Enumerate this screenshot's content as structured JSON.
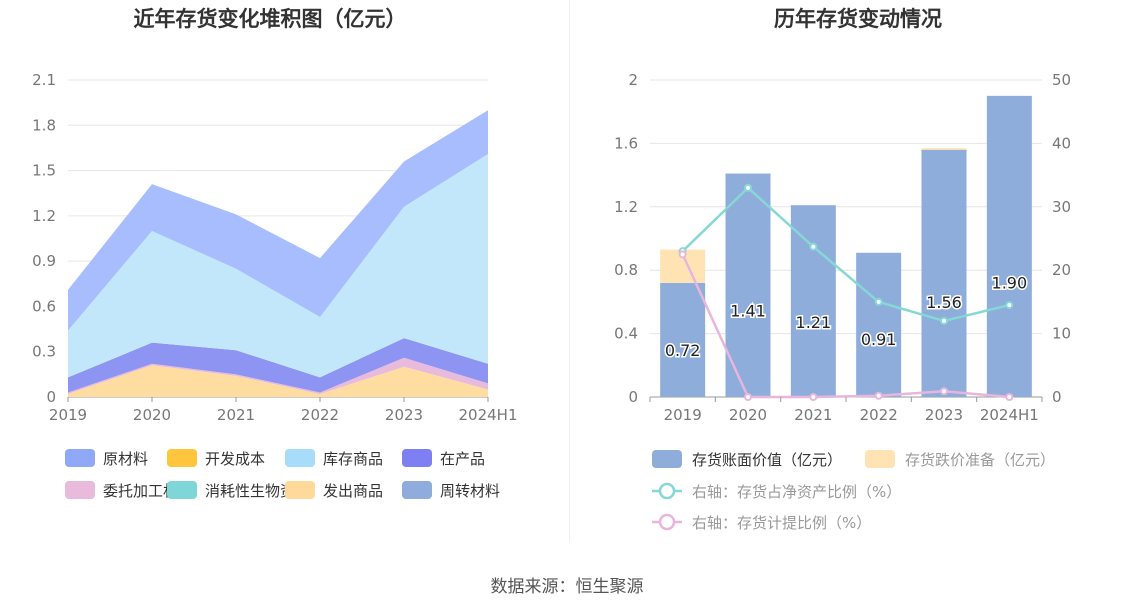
{
  "footer": {
    "source": "数据来源：恒生聚源"
  },
  "chart_data": [
    {
      "type": "area",
      "stacked": true,
      "title": "近年存货变化堆积图（亿元）",
      "x": [
        "2019",
        "2020",
        "2021",
        "2022",
        "2023",
        "2024H1"
      ],
      "ylim": [
        0,
        2.1
      ],
      "yticks": [
        "0",
        "0.3",
        "0.6",
        "0.9",
        "1.2",
        "1.5",
        "1.8",
        "2.1"
      ],
      "grid": true,
      "legend_position": "bottom",
      "series": [
        {
          "name": "发出商品",
          "color": "#FFDDA1",
          "values": [
            0.02,
            0.21,
            0.14,
            0.02,
            0.2,
            0.05
          ]
        },
        {
          "name": "委托加工材料",
          "color": "#E8BBDD",
          "values": [
            0.01,
            0.01,
            0.01,
            0.01,
            0.06,
            0.04
          ]
        },
        {
          "name": "在产品",
          "color": "#8E94F2",
          "values": [
            0.1,
            0.14,
            0.16,
            0.1,
            0.13,
            0.13
          ]
        },
        {
          "name": "库存商品",
          "color": "#C2E7FB",
          "values": [
            0.31,
            0.74,
            0.54,
            0.4,
            0.87,
            1.39
          ]
        },
        {
          "name": "原材料",
          "color": "#A7BDFE",
          "values": [
            0.27,
            0.31,
            0.36,
            0.39,
            0.3,
            0.29
          ]
        },
        {
          "name": "开发成本",
          "color": "#FFC53D",
          "values": [
            0,
            0,
            0,
            0,
            0,
            0
          ]
        },
        {
          "name": "消耗性生物资产",
          "color": "#7FD6D6",
          "values": [
            0,
            0,
            0,
            0,
            0,
            0
          ]
        },
        {
          "name": "周转材料",
          "color": "#8FACDC",
          "values": [
            0,
            0,
            0,
            0,
            0,
            0
          ]
        }
      ],
      "legend": [
        {
          "name": "原材料",
          "color": "#8FA9F6"
        },
        {
          "name": "开发成本",
          "color": "#FFC53D"
        },
        {
          "name": "库存商品",
          "color": "#A7DDF8"
        },
        {
          "name": "在产品",
          "color": "#7D7FF2"
        },
        {
          "name": "委托加工材料",
          "color": "#E8BBDD"
        },
        {
          "name": "消耗性生物资产",
          "color": "#7FD6D6"
        },
        {
          "name": "发出商品",
          "color": "#FFD99A"
        },
        {
          "name": "周转材料",
          "color": "#8FACDC"
        }
      ]
    },
    {
      "type": "bar",
      "title": "历年存货变动情况",
      "categories": [
        "2019",
        "2020",
        "2021",
        "2022",
        "2023",
        "2024H1"
      ],
      "ylim": [
        0,
        2
      ],
      "yticks": [
        "0",
        "0.4",
        "0.8",
        "1.2",
        "1.6",
        "2"
      ],
      "y2lim": [
        0,
        50
      ],
      "y2ticks": [
        "0",
        "10",
        "20",
        "30",
        "40",
        "50"
      ],
      "grid": true,
      "legend_position": "bottom",
      "series": [
        {
          "name": "存货账面价值（亿元）",
          "color": "#8EADDB",
          "values": [
            0.72,
            1.41,
            1.21,
            0.91,
            1.56,
            1.9
          ],
          "labels": [
            "0.72",
            "1.41",
            "1.21",
            "0.91",
            "1.56",
            "1.90"
          ]
        },
        {
          "name": "存货跌价准备（亿元）",
          "color": "#FFE3B3",
          "values": [
            0.21,
            0,
            0,
            0,
            0.01,
            0
          ]
        },
        {
          "name": "右轴：存货占净资产比例（%）",
          "color": "#86D8D5",
          "axis": "right",
          "values": [
            23,
            33,
            23.7,
            15,
            12,
            14.5
          ]
        },
        {
          "name": "右轴：存货计提比例（%）",
          "color": "#E7B6DD",
          "axis": "right",
          "values": [
            22.5,
            0,
            0,
            0.2,
            0.9,
            0
          ]
        }
      ]
    }
  ]
}
